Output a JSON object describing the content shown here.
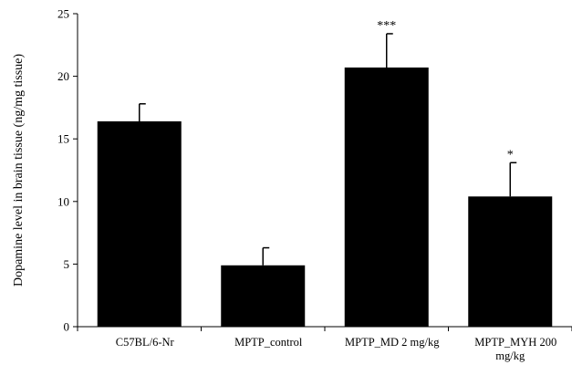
{
  "chart_data": {
    "type": "bar",
    "title": "",
    "xlabel": "",
    "ylabel": "Dopamine level in brain tissue (ng/mg tissue)",
    "ylim": [
      0,
      25
    ],
    "yticks": [
      0,
      5,
      10,
      15,
      20,
      25
    ],
    "grid": false,
    "legend": "none",
    "bar_color": "#000000",
    "categories": [
      [
        "C57BL/6-Nr"
      ],
      [
        "MPTP_control"
      ],
      [
        "MPTP_MD 2 mg/kg"
      ],
      [
        "MPTP_MYH 200",
        "mg/kg"
      ]
    ],
    "values": [
      16.4,
      4.9,
      20.7,
      10.4
    ],
    "errors": [
      1.4,
      1.4,
      2.7,
      2.7
    ],
    "annotations": [
      "",
      "",
      "***",
      "*"
    ]
  }
}
